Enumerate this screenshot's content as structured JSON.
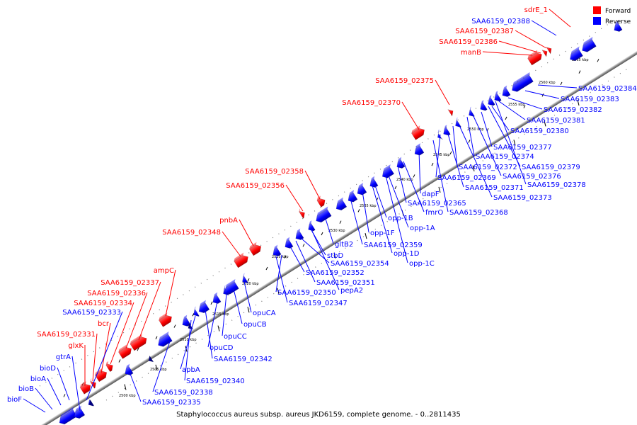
{
  "caption": "Staphylococcus aureus subsp. aureus JKD6159, complete genome. - 0..2811435",
  "legend": [
    {
      "label": "Forward",
      "color": "#ff0000"
    },
    {
      "label": "Reverse",
      "color": "#0000ff"
    }
  ],
  "colors": {
    "forward": "#ff0000",
    "reverse": "#0000ff",
    "backbone": "#808080"
  },
  "scale_marks": [
    "2500 kbp",
    "2505 kbp",
    "2510 kbp",
    "2515 kbp",
    "2520 kbp",
    "2525 kbp",
    "2530 kbp",
    "2535 kbp",
    "2540 kbp",
    "2545 kbp",
    "2550 kbp",
    "2555 kbp",
    "2560 kbp",
    "2565 kbp"
  ],
  "forward_labels": [
    "sdrE_1",
    "SAA6159_02387",
    "SAA6159_02386",
    "manB",
    "SAA6159_02375",
    "SAA6159_02370",
    "SAA6159_02358",
    "SAA6159_02356",
    "pnbA",
    "SAA6159_02348",
    "ampC",
    "SAA6159_02337",
    "SAA6159_02336",
    "SAA6159_02334",
    "bcr",
    "SAA6159_02331",
    "glxK"
  ],
  "reverse_labels": [
    "SAA6159_02388",
    "gtrA",
    "bioD",
    "bioA",
    "bioB",
    "bioF",
    "SAA6159_02333",
    "SAA6159_02384",
    "SAA6159_02383",
    "SAA6159_02382",
    "SAA6159_02381",
    "SAA6159_02380",
    "SAA6159_02377",
    "SAA6159_02374",
    "SAA6159_02372",
    "SAA6159_02379",
    "SAA6159_02376",
    "SAA6159_02378",
    "SAA6159_02369",
    "SAA6159_02371",
    "SAA6159_02373",
    "dapF",
    "SAA6159_02365",
    "fmrO",
    "SAA6159_02368",
    "opp-1B",
    "opp-1A",
    "opp-1F",
    "gltB2",
    "SAA6159_02359",
    "opp-1D",
    "stbD",
    "SAA6159_02354",
    "opp-1C",
    "SAA6159_02352",
    "SAA6159_02351",
    "pepA2",
    "SAA6159_02350",
    "SAA6159_02347",
    "opuCA",
    "opuCB",
    "opuCC",
    "opuCD",
    "SAA6159_02342",
    "apbA",
    "SAA6159_02340",
    "SAA6159_02338",
    "SAA6159_02335"
  ]
}
